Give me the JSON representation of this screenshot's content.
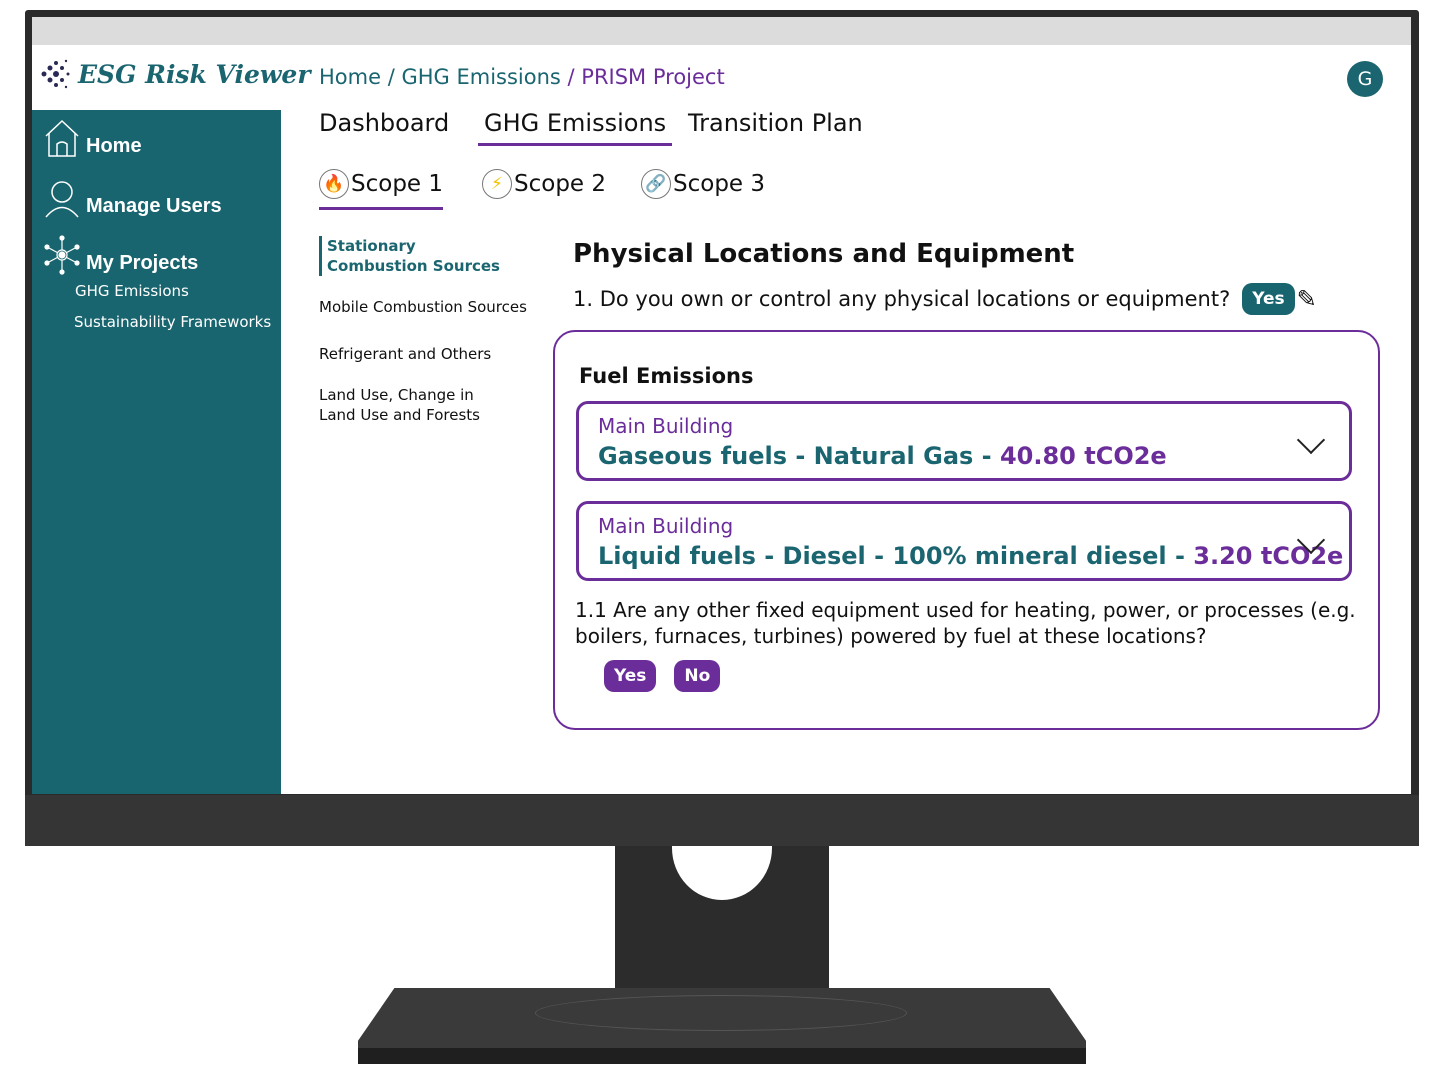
{
  "app": {
    "title": "ESG Risk Viewer"
  },
  "colors": {
    "teal": "#19656f",
    "purple": "#6b2d9a"
  },
  "sidebar": {
    "items": [
      {
        "label": "Home",
        "icon": "home-icon"
      },
      {
        "label": "Manage Users",
        "icon": "user-icon"
      },
      {
        "label": "My Projects",
        "icon": "network-icon"
      }
    ],
    "subitems": [
      "GHG Emissions",
      "Sustainability Frameworks"
    ]
  },
  "breadcrumb": {
    "home": "Home",
    "sep1": " / ",
    "section": "GHG Emissions",
    "sep2": " / ",
    "project": "PRISM Project"
  },
  "avatar": "G",
  "tabs": [
    "Dashboard",
    "GHG Emissions",
    "Transition Plan"
  ],
  "scopes": [
    {
      "label": "Scope 1",
      "icon": "fire-icon"
    },
    {
      "label": "Scope 2",
      "icon": "lightning-icon"
    },
    {
      "label": "Scope 3",
      "icon": "link-icon"
    }
  ],
  "subnav": [
    "Stationary Combustion Sources",
    "Mobile Combustion Sources",
    "Refrigerant and Others",
    "Land Use, Change in Land Use and Forests"
  ],
  "main": {
    "title": "Physical Locations and Equipment",
    "q1": "1.  Do you own or control any physical locations or equipment?",
    "q1_answer": "Yes",
    "card": {
      "title": "Fuel Emissions",
      "entries": [
        {
          "location": "Main Building",
          "desc": "Gaseous fuels - Natural Gas - ",
          "value": "40.80 tCO2e"
        },
        {
          "location": "Main Building",
          "desc": "Liquid fuels - Diesel - 100% mineral diesel - ",
          "value": "3.20 tCO2e"
        }
      ],
      "q2": "1.1 Are any other fixed equipment used for heating, power, or processes (e.g. boilers, furnaces, turbines) powered by fuel at these locations?",
      "yes": "Yes",
      "no": "No"
    }
  }
}
